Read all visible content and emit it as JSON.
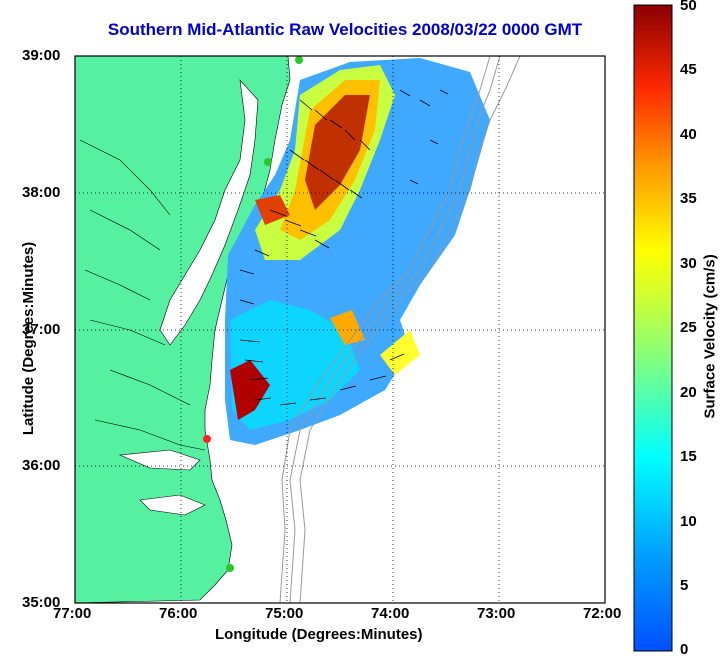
{
  "title": "Southern Mid-Atlantic Raw Velocities 2008/03/22 0000 GMT",
  "xlabel": "Longitude (Degrees:Minutes)",
  "ylabel": "Latitude (Degrees:Minutes)",
  "colorbar_label": "Surface Velocity (cm/s)",
  "x_ticks": [
    "77:00",
    "76:00",
    "75:00",
    "74:00",
    "73:00",
    "72:00"
  ],
  "y_ticks": [
    "39:00",
    "38:00",
    "37:00",
    "36:00",
    "35:00"
  ],
  "colorbar_ticks": [
    "50",
    "45",
    "40",
    "35",
    "30",
    "25",
    "20",
    "15",
    "10",
    "5",
    "0"
  ],
  "colors": {
    "land": "#55f0a0",
    "title": "#0000d0",
    "station": "#28c828",
    "station_active": "#ff2020"
  },
  "chart_data": {
    "type": "heatmap",
    "title": "Southern Mid-Atlantic Raw Velocities 2008/03/22 0000 GMT",
    "xlabel": "Longitude (Degrees:Minutes)",
    "ylabel": "Latitude (Degrees:Minutes)",
    "xlim": [
      -77,
      -72
    ],
    "ylim": [
      35,
      39
    ],
    "clim": [
      0,
      50
    ],
    "colorbar_label": "Surface Velocity (cm/s)",
    "grid": true
  }
}
